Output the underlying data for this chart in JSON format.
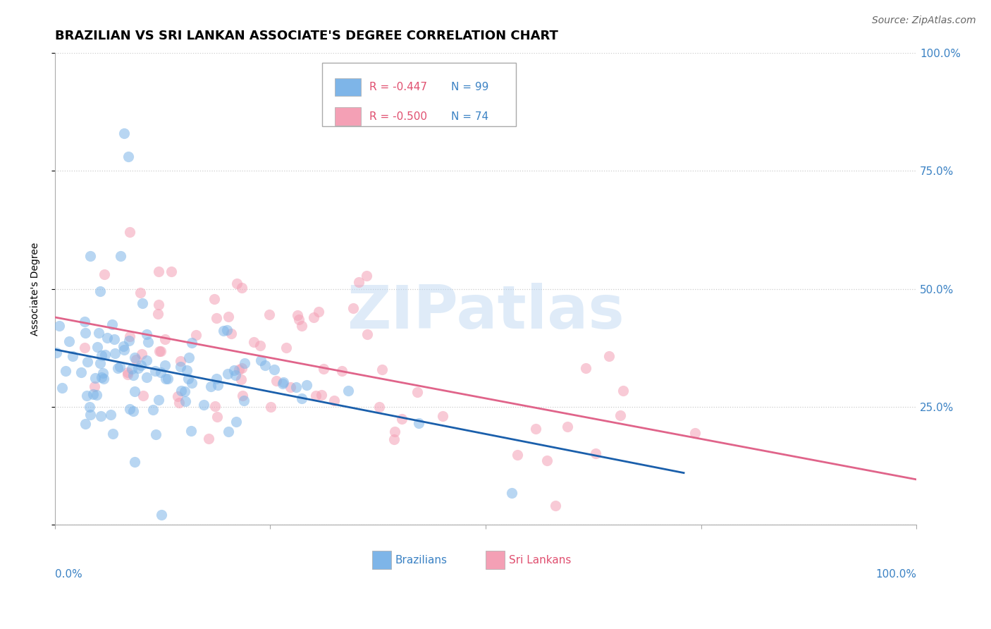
{
  "title": "BRAZILIAN VS SRI LANKAN ASSOCIATE'S DEGREE CORRELATION CHART",
  "source": "Source: ZipAtlas.com",
  "ylabel": "Associate's Degree",
  "legend_label1": "Brazilians",
  "legend_label2": "Sri Lankans",
  "legend_r1": "R = -0.447",
  "legend_n1": "N = 99",
  "legend_r2": "R = -0.500",
  "legend_n2": "N = 74",
  "color_blue": "#7EB5E8",
  "color_pink": "#F4A0B5",
  "color_blue_line": "#1A5FAB",
  "color_pink_line": "#E0648A",
  "color_blue_text": "#3B82C4",
  "color_pink_text": "#D4547A",
  "color_n_text": "#3B82C4",
  "color_r_text": "#E05070",
  "bg_color": "#FFFFFF",
  "watermark": "ZIPatlas",
  "ytick_positions": [
    0.0,
    0.25,
    0.5,
    0.75,
    1.0
  ],
  "ytick_labels": [
    "",
    "25.0%",
    "50.0%",
    "75.0%",
    "100.0%"
  ],
  "xlim": [
    0.0,
    1.0
  ],
  "ylim": [
    0.0,
    1.0
  ],
  "marker_size": 120,
  "marker_alpha": 0.55,
  "line_width": 2.0,
  "grid_color": "#CCCCCC",
  "grid_style": "dotted",
  "title_fontsize": 13,
  "source_fontsize": 10,
  "axis_label_fontsize": 10,
  "tick_color": "#3B82C4",
  "watermark_color": "#DDEEFF",
  "watermark_alpha": 0.45,
  "n_blue": 99,
  "n_pink": 74,
  "r_blue": -0.447,
  "r_pink": -0.5
}
